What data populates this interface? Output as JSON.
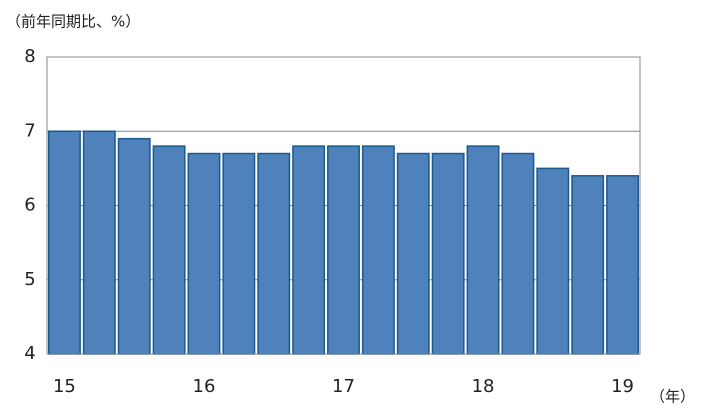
{
  "chart_data": {
    "type": "bar",
    "y_axis_label": "（前年同期比、%）",
    "x_axis_label": "（年）",
    "categories": [
      "15",
      null,
      null,
      null,
      "16",
      null,
      null,
      null,
      "17",
      null,
      null,
      null,
      "18",
      null,
      null,
      null,
      "19"
    ],
    "values": [
      7.0,
      7.0,
      6.9,
      6.8,
      6.7,
      6.7,
      6.7,
      6.8,
      6.8,
      6.8,
      6.7,
      6.7,
      6.8,
      6.7,
      6.5,
      6.4,
      6.4
    ],
    "color": "#4f81bd",
    "ylim": [
      4,
      8
    ],
    "yticks": [
      4,
      5,
      6,
      7,
      8
    ],
    "grid": true
  }
}
